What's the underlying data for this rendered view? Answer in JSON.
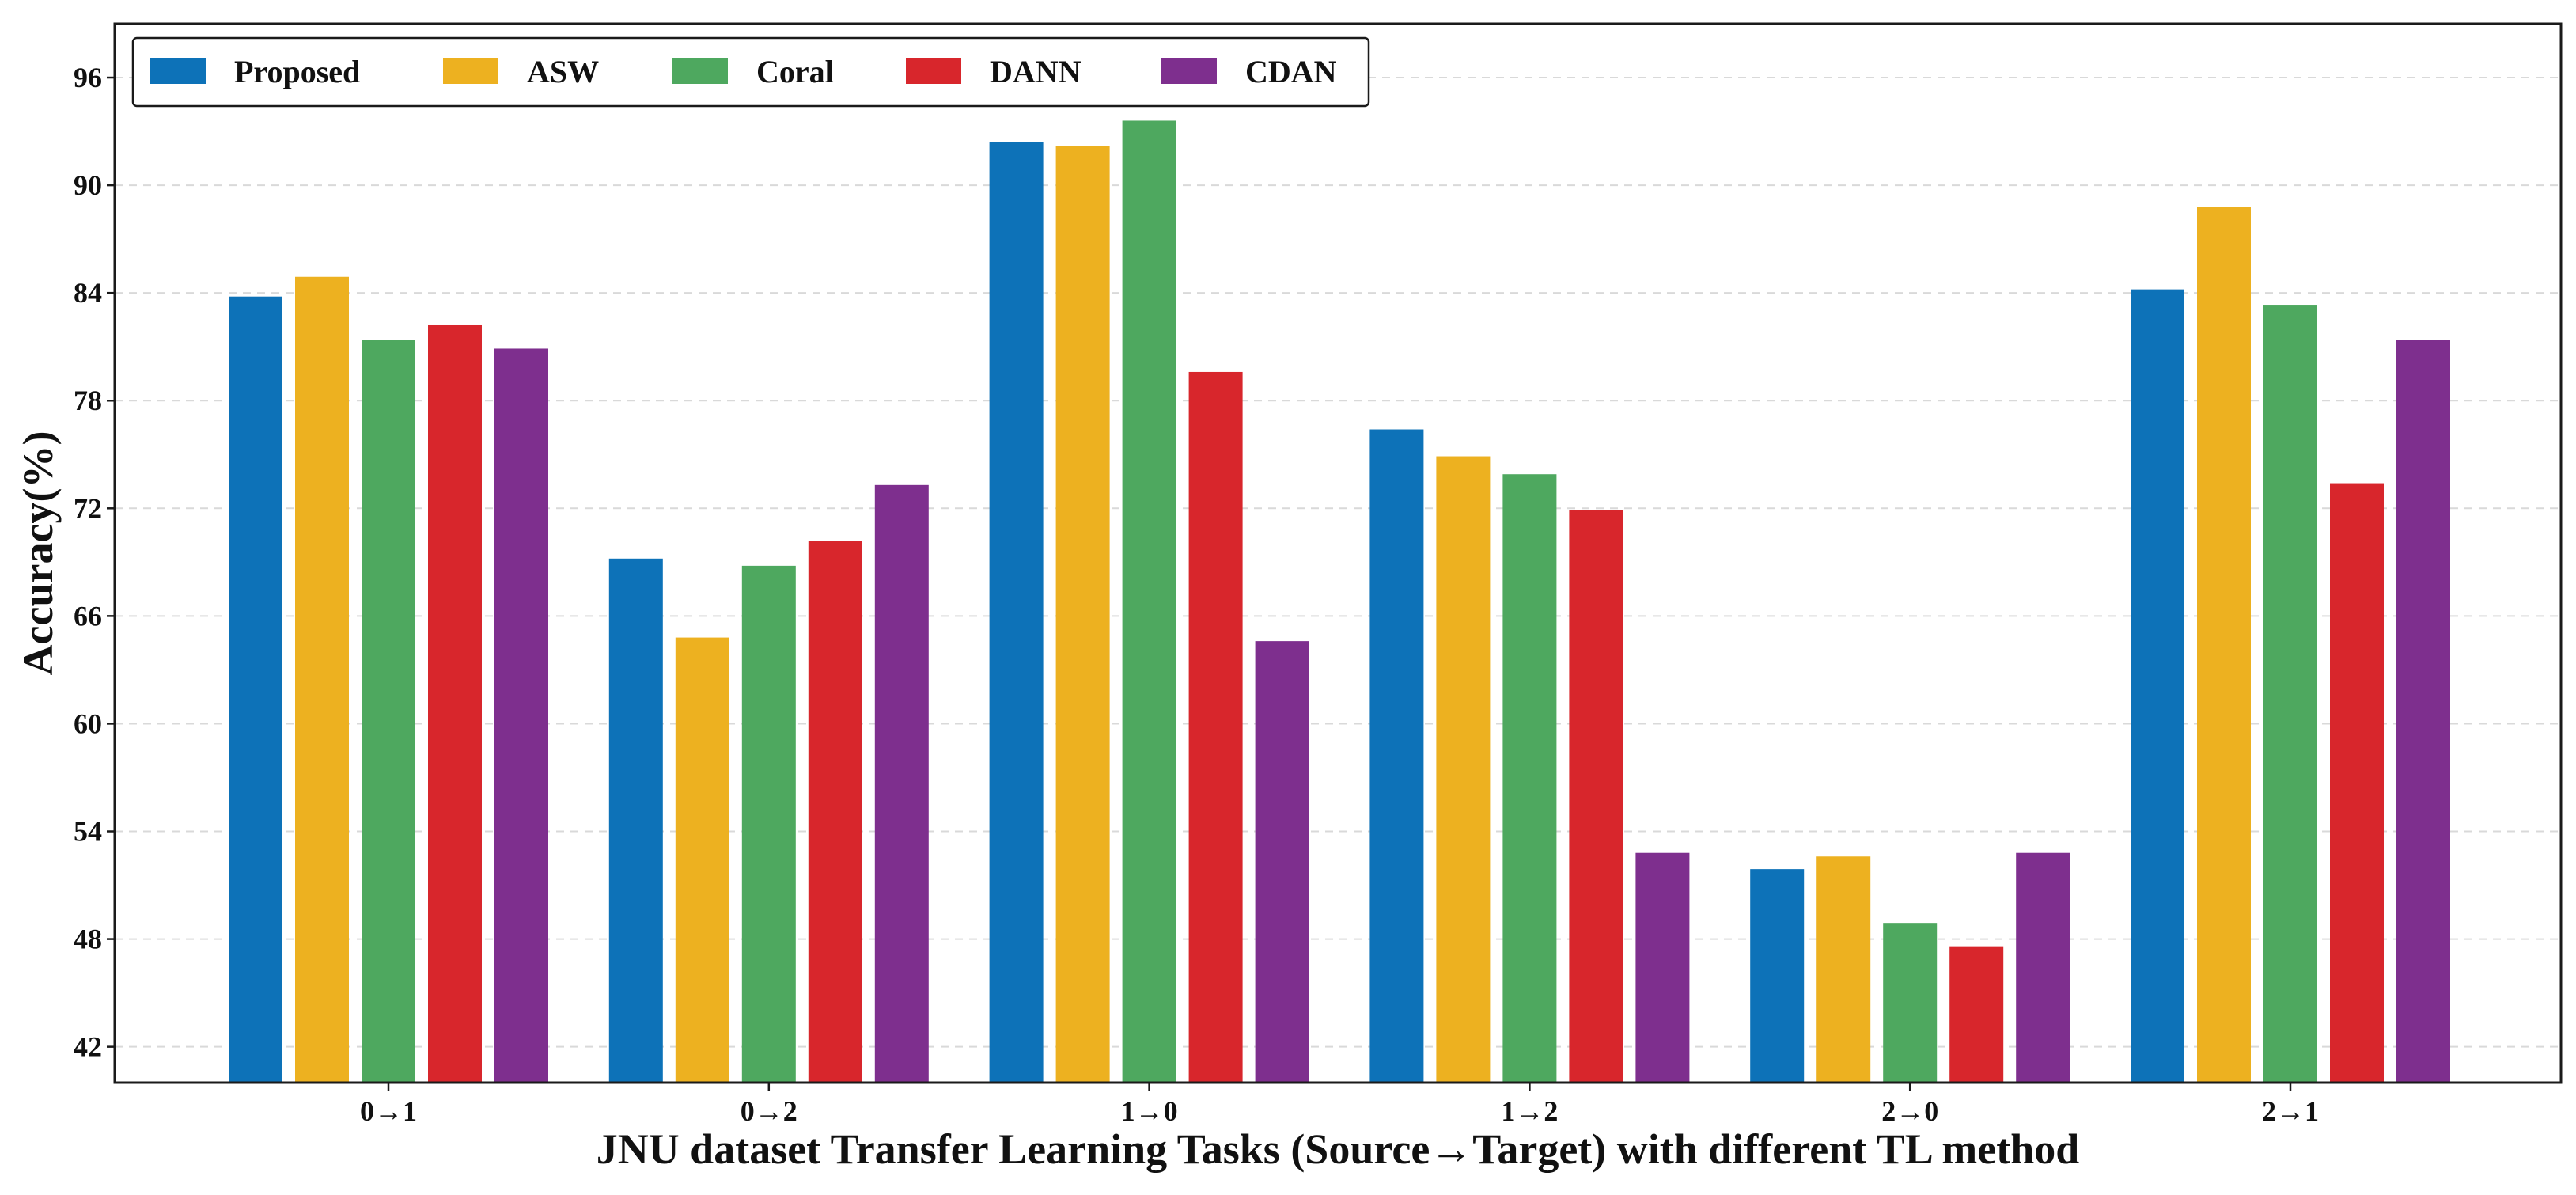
{
  "chart_data": {
    "type": "bar",
    "title": "",
    "xlabel": "JNU dataset Transfer Learning Tasks (Source→Target) with different TL method",
    "ylabel": "Accuracy(%)",
    "ylim": [
      40,
      99
    ],
    "yticks": [
      42,
      48,
      54,
      60,
      66,
      72,
      78,
      84,
      90,
      96
    ],
    "grid": "horizontal-dashed",
    "legend_position": "top-left",
    "categories": [
      "0→1",
      "0→2",
      "1→0",
      "1→2",
      "2→0",
      "2→1"
    ],
    "series": [
      {
        "name": "Proposed",
        "color": "#0d72b8",
        "values": [
          83.8,
          69.2,
          92.4,
          76.4,
          51.9,
          84.2
        ]
      },
      {
        "name": "ASW",
        "color": "#edb120",
        "values": [
          84.9,
          64.8,
          92.2,
          74.9,
          52.6,
          88.8
        ]
      },
      {
        "name": "Coral",
        "color": "#4ea85f",
        "values": [
          81.4,
          68.8,
          93.6,
          73.9,
          48.9,
          83.3
        ]
      },
      {
        "name": "DANN",
        "color": "#d8262c",
        "values": [
          82.2,
          70.2,
          79.6,
          71.9,
          47.6,
          73.4
        ]
      },
      {
        "name": "CDAN",
        "color": "#7e2f8e",
        "values": [
          80.9,
          73.3,
          64.6,
          52.8,
          52.8,
          81.4
        ]
      }
    ]
  }
}
